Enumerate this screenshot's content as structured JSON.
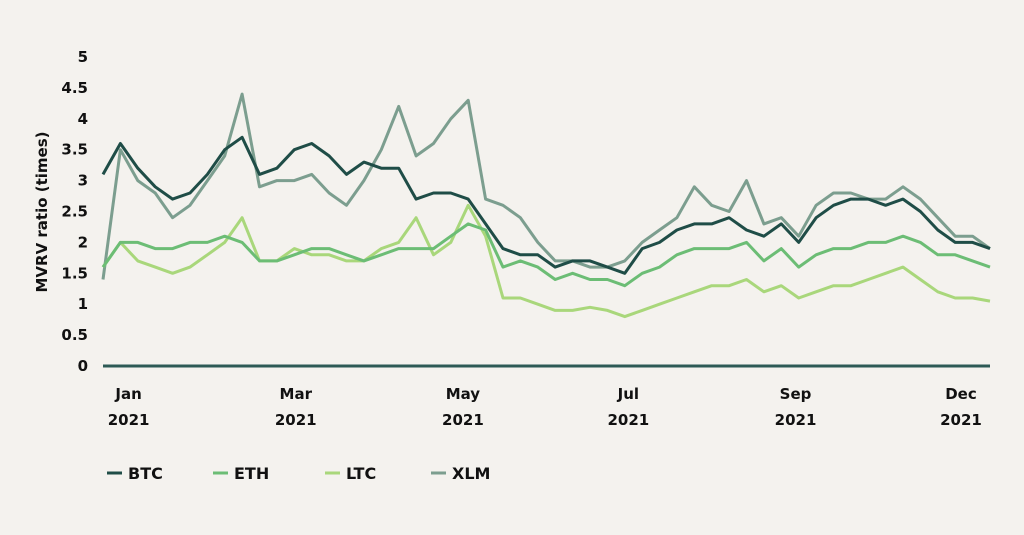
{
  "chart_data": {
    "type": "line",
    "title": "",
    "xlabel": "",
    "ylabel": "MVRV ratio (times)",
    "ylim": [
      0,
      5
    ],
    "yticks": [
      "0",
      "0.5",
      "1",
      "1.5",
      "2",
      "2.5",
      "3",
      "3.5",
      "4",
      "4.5",
      "5"
    ],
    "x_unit": "week of 2021",
    "xlim": [
      0,
      52
    ],
    "xticks": [
      {
        "pos": 1.5,
        "label": "Jan",
        "year": "2021"
      },
      {
        "pos": 11.3,
        "label": "Mar",
        "year": "2021"
      },
      {
        "pos": 21.1,
        "label": "May",
        "year": "2021"
      },
      {
        "pos": 30.8,
        "label": "Jul",
        "year": "2021"
      },
      {
        "pos": 40.6,
        "label": "Sep",
        "year": "2021"
      },
      {
        "pos": 50.3,
        "label": "Dec",
        "year": "2021"
      }
    ],
    "grid": false,
    "legend_position": "bottom-left",
    "series": [
      {
        "name": "XLM",
        "color": "#7c9e8f",
        "values": [
          1.4,
          3.5,
          3.0,
          2.8,
          2.4,
          2.6,
          3.0,
          3.4,
          4.4,
          2.9,
          3.0,
          3.0,
          3.1,
          2.8,
          2.6,
          3.0,
          3.5,
          4.2,
          3.4,
          3.6,
          4.0,
          4.3,
          2.7,
          2.6,
          2.4,
          2.0,
          1.7,
          1.7,
          1.6,
          1.6,
          1.7,
          2.0,
          2.2,
          2.4,
          2.9,
          2.6,
          2.5,
          3.0,
          2.3,
          2.4,
          2.1,
          2.6,
          2.8,
          2.8,
          2.7,
          2.7,
          2.9,
          2.7,
          2.4,
          2.1,
          2.1,
          1.9
        ]
      },
      {
        "name": "LTC",
        "color": "#a9d77b",
        "values": [
          1.6,
          2.0,
          1.7,
          1.6,
          1.5,
          1.6,
          1.8,
          2.0,
          2.4,
          1.7,
          1.7,
          1.9,
          1.8,
          1.8,
          1.7,
          1.7,
          1.9,
          2.0,
          2.4,
          1.8,
          2.0,
          2.6,
          2.1,
          1.1,
          1.1,
          1.0,
          0.9,
          0.9,
          0.95,
          0.9,
          0.8,
          0.9,
          1.0,
          1.1,
          1.2,
          1.3,
          1.3,
          1.4,
          1.2,
          1.3,
          1.1,
          1.2,
          1.3,
          1.3,
          1.4,
          1.5,
          1.6,
          1.4,
          1.2,
          1.1,
          1.1,
          1.05
        ]
      },
      {
        "name": "ETH",
        "color": "#6cbd75",
        "values": [
          1.6,
          2.0,
          2.0,
          1.9,
          1.9,
          2.0,
          2.0,
          2.1,
          2.0,
          1.7,
          1.7,
          1.8,
          1.9,
          1.9,
          1.8,
          1.7,
          1.8,
          1.9,
          1.9,
          1.9,
          2.1,
          2.3,
          2.2,
          1.6,
          1.7,
          1.6,
          1.4,
          1.5,
          1.4,
          1.4,
          1.3,
          1.5,
          1.6,
          1.8,
          1.9,
          1.9,
          1.9,
          2.0,
          1.7,
          1.9,
          1.6,
          1.8,
          1.9,
          1.9,
          2.0,
          2.0,
          2.1,
          2.0,
          1.8,
          1.8,
          1.7,
          1.6
        ]
      },
      {
        "name": "BTC",
        "color": "#1f4d47",
        "values": [
          3.1,
          3.6,
          3.2,
          2.9,
          2.7,
          2.8,
          3.1,
          3.5,
          3.7,
          3.1,
          3.2,
          3.5,
          3.6,
          3.4,
          3.1,
          3.3,
          3.2,
          3.2,
          2.7,
          2.8,
          2.8,
          2.7,
          2.3,
          1.9,
          1.8,
          1.8,
          1.6,
          1.7,
          1.7,
          1.6,
          1.5,
          1.9,
          2.0,
          2.2,
          2.3,
          2.3,
          2.4,
          2.2,
          2.1,
          2.3,
          2.0,
          2.4,
          2.6,
          2.7,
          2.7,
          2.6,
          2.7,
          2.5,
          2.2,
          2.0,
          2.0,
          1.9
        ]
      }
    ],
    "legend_order": [
      "BTC",
      "ETH",
      "LTC",
      "XLM"
    ],
    "axis_color": "#2d5a55"
  }
}
